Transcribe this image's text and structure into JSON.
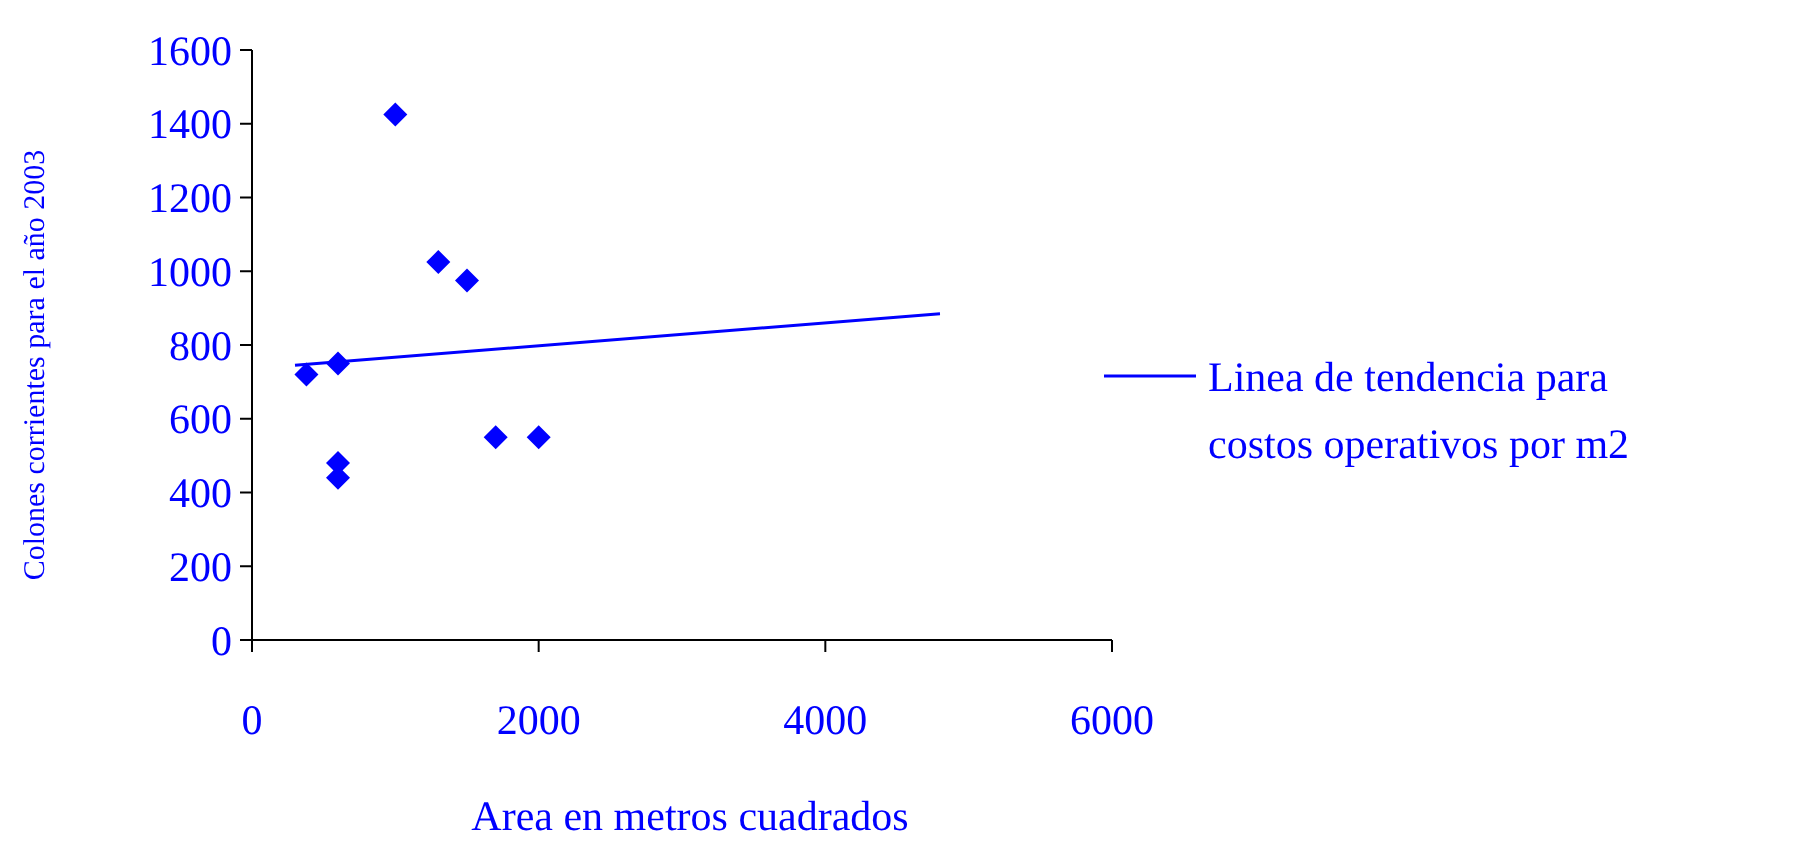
{
  "chart_data": {
    "type": "scatter",
    "xlabel": "Area en metros cuadrados",
    "ylabel": "Colones corrientes para el año 2003",
    "xlim": [
      0,
      6000
    ],
    "xticks": [
      0,
      2000,
      4000,
      6000
    ],
    "ylim": [
      0,
      1600
    ],
    "yticks": [
      0,
      200,
      400,
      600,
      800,
      1000,
      1200,
      1400,
      1600
    ],
    "legend": "right",
    "grid": false,
    "series": [
      {
        "color": "#0000ff",
        "marker": "diamond",
        "x": [
          380,
          600,
          600,
          600,
          1000,
          1300,
          1500,
          1700,
          2000
        ],
        "values": [
          720,
          750,
          480,
          440,
          1425,
          1025,
          975,
          550,
          550
        ]
      },
      {
        "type": "line",
        "marker": "none",
        "name": "Linea de tendencia para costos operativos por m2",
        "color": "#0000ff",
        "x": [
          300,
          4800
        ],
        "values": [
          745,
          885
        ]
      }
    ]
  }
}
